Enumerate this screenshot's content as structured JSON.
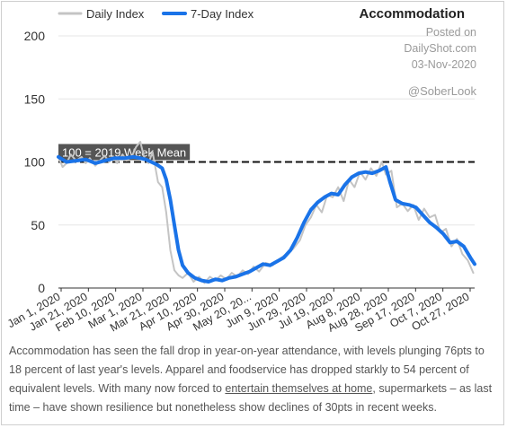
{
  "chart_data": {
    "type": "line",
    "title": "Accommodation",
    "legend": {
      "placement": "top-left"
    },
    "series": [
      {
        "name": "Daily Index",
        "color": "#c4c4c4",
        "x": [
          "2020-01-01",
          "2020-01-04",
          "2020-01-07",
          "2020-01-10",
          "2020-01-14",
          "2020-01-18",
          "2020-01-21",
          "2020-01-24",
          "2020-01-28",
          "2020-02-01",
          "2020-02-04",
          "2020-02-07",
          "2020-02-10",
          "2020-02-13",
          "2020-02-17",
          "2020-02-20",
          "2020-02-24",
          "2020-02-27",
          "2020-03-01",
          "2020-03-04",
          "2020-03-07",
          "2020-03-10",
          "2020-03-14",
          "2020-03-17",
          "2020-03-20",
          "2020-03-23",
          "2020-03-26",
          "2020-03-29",
          "2020-04-01",
          "2020-04-05",
          "2020-04-09",
          "2020-04-13",
          "2020-04-17",
          "2020-04-21",
          "2020-04-25",
          "2020-04-29",
          "2020-05-03",
          "2020-05-07",
          "2020-05-11",
          "2020-05-15",
          "2020-05-19",
          "2020-05-23",
          "2020-05-27",
          "2020-06-01",
          "2020-06-06",
          "2020-06-11",
          "2020-06-16",
          "2020-06-21",
          "2020-06-26",
          "2020-06-30",
          "2020-07-04",
          "2020-07-08",
          "2020-07-12",
          "2020-07-16",
          "2020-07-20",
          "2020-07-24",
          "2020-07-28",
          "2020-08-01",
          "2020-08-05",
          "2020-08-09",
          "2020-08-13",
          "2020-08-17",
          "2020-08-21",
          "2020-08-25",
          "2020-08-28",
          "2020-09-01",
          "2020-09-05",
          "2020-09-09",
          "2020-09-13",
          "2020-09-17",
          "2020-09-21",
          "2020-09-25",
          "2020-09-29",
          "2020-10-03",
          "2020-10-07",
          "2020-10-11",
          "2020-10-15",
          "2020-10-19",
          "2020-10-23",
          "2020-10-27",
          "2020-10-31"
        ],
        "values": [
          104,
          96,
          99,
          106,
          101,
          104,
          99,
          103,
          97,
          102,
          105,
          100,
          104,
          99,
          106,
          101,
          105,
          112,
          116,
          103,
          99,
          108,
          84,
          80,
          60,
          30,
          14,
          10,
          8,
          12,
          5,
          9,
          4,
          9,
          6,
          10,
          7,
          12,
          9,
          14,
          11,
          17,
          13,
          20,
          18,
          23,
          27,
          31,
          38,
          50,
          56,
          66,
          60,
          74,
          72,
          80,
          69,
          86,
          80,
          92,
          86,
          95,
          89,
          100,
          90,
          93,
          64,
          67,
          61,
          66,
          54,
          63,
          56,
          58,
          44,
          47,
          33,
          39,
          27,
          22,
          12
        ]
      },
      {
        "name": "7-Day Index",
        "color": "#1a73e8",
        "x": [
          "2020-01-01",
          "2020-01-07",
          "2020-01-14",
          "2020-01-21",
          "2020-01-28",
          "2020-02-04",
          "2020-02-11",
          "2020-02-18",
          "2020-02-25",
          "2020-03-01",
          "2020-03-05",
          "2020-03-09",
          "2020-03-13",
          "2020-03-17",
          "2020-03-20",
          "2020-03-23",
          "2020-03-26",
          "2020-03-29",
          "2020-04-01",
          "2020-04-05",
          "2020-04-10",
          "2020-04-15",
          "2020-04-20",
          "2020-04-25",
          "2020-04-30",
          "2020-05-05",
          "2020-05-10",
          "2020-05-15",
          "2020-05-20",
          "2020-05-25",
          "2020-05-30",
          "2020-06-04",
          "2020-06-09",
          "2020-06-14",
          "2020-06-19",
          "2020-06-24",
          "2020-06-29",
          "2020-07-04",
          "2020-07-09",
          "2020-07-14",
          "2020-07-19",
          "2020-07-24",
          "2020-07-29",
          "2020-08-03",
          "2020-08-08",
          "2020-08-13",
          "2020-08-18",
          "2020-08-23",
          "2020-08-28",
          "2020-08-31",
          "2020-09-04",
          "2020-09-09",
          "2020-09-14",
          "2020-09-19",
          "2020-09-24",
          "2020-09-29",
          "2020-10-04",
          "2020-10-09",
          "2020-10-14",
          "2020-10-19",
          "2020-10-24",
          "2020-10-29",
          "2020-11-01"
        ],
        "values": [
          104,
          100,
          101,
          102,
          99,
          101,
          103,
          103,
          104,
          103,
          102,
          100,
          98,
          95,
          86,
          70,
          50,
          30,
          18,
          12,
          8,
          6,
          5,
          7,
          6,
          8,
          9,
          11,
          13,
          16,
          19,
          18,
          21,
          24,
          30,
          40,
          52,
          62,
          68,
          72,
          75,
          74,
          82,
          88,
          91,
          92,
          91,
          93,
          96,
          84,
          70,
          67,
          66,
          64,
          58,
          52,
          48,
          43,
          36,
          37,
          33,
          24,
          19
        ]
      }
    ],
    "y_axis": {
      "ylim": [
        0,
        200
      ],
      "ticks": [
        0,
        50,
        100,
        150,
        200
      ],
      "grid": true
    },
    "x_axis": {
      "range": [
        "2020-01-01",
        "2020-11-01"
      ],
      "tick_labels": [
        "Jan 1, 2020",
        "Jan 21, 2020",
        "Feb 10, 2020",
        "Mar 1, 2020",
        "Mar 21, 2020",
        "Apr 10, 2020",
        "Apr 30, 2020",
        "May 20, 20...",
        "Jun 9, 2020",
        "Jun 29, 2020",
        "Jul 19, 2020",
        "Aug 8, 2020",
        "Aug 28, 2020",
        "Sep 17, 2020",
        "Oct 7, 2020",
        "Oct 27, 2020"
      ]
    },
    "reference_line": {
      "value": 100,
      "label": "100 = 2019 Week Mean",
      "style": "dashed",
      "color": "#111111"
    }
  },
  "watermark": {
    "posted_on": "Posted on",
    "site": "DailyShot.com",
    "date": "03-Nov-2020",
    "handle": "@SoberLook"
  },
  "caption": {
    "before_link": "Accommodation has seen the fall drop in year-on-year attendance, with levels plunging 76pts to 18 percent of last year's levels. Apparel and foodservice has dropped starkly to 54 percent of equivalent levels. With many now forced to ",
    "link": "entertain themselves at home",
    "after_link": ", supermarkets – as last time – have shown resilience but nonetheless show declines of 30pts in recent weeks."
  }
}
